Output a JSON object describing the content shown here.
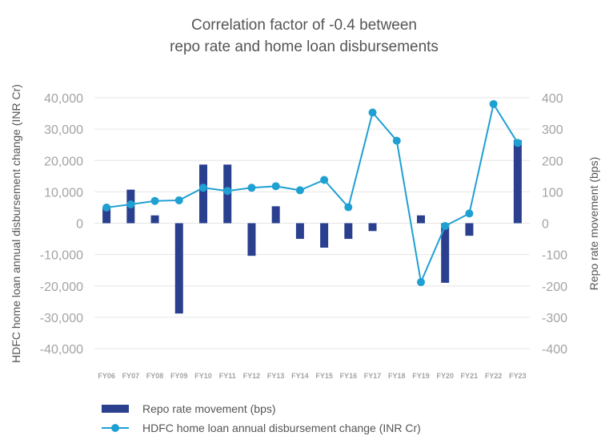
{
  "chart_data": {
    "type": "bar+line",
    "title_lines": [
      "Correlation factor of -0.4 between",
      "repo rate and home loan disbursements"
    ],
    "categories": [
      "FY06",
      "FY07",
      "FY08",
      "FY09",
      "FY10",
      "FY11",
      "FY12",
      "FY13",
      "FY14",
      "FY15",
      "FY16",
      "FY17",
      "FY18",
      "FY19",
      "FY20",
      "FY21",
      "FY22",
      "FY23"
    ],
    "left_axis": {
      "label": "HDFC home loan annual disbursement change (INR Cr)",
      "ylim": [
        -40000,
        40000
      ],
      "ticks": [
        40000,
        30000,
        20000,
        10000,
        0,
        -10000,
        -20000,
        -30000,
        -40000
      ],
      "tick_labels": [
        "40,000",
        "30,000",
        "20,000",
        "10,000",
        "0",
        "-10,000",
        "-20,000",
        "-30,000",
        "-40,000"
      ]
    },
    "right_axis": {
      "label": "Repo rate movement (bps)",
      "ylim": [
        -400,
        400
      ],
      "ticks": [
        400,
        300,
        200,
        100,
        0,
        -100,
        -200,
        -300,
        -400
      ],
      "tick_labels": [
        "400",
        "300",
        "200",
        "100",
        "0",
        "-100",
        "-200",
        "-300",
        "-400"
      ]
    },
    "series": [
      {
        "name": "Repo rate movement (bps)",
        "type": "bar",
        "axis": "right",
        "color": "#2b3f8f",
        "values": [
          50,
          107,
          25,
          -288,
          187,
          187,
          -104,
          54,
          -50,
          -78,
          -50,
          -25,
          0,
          25,
          -190,
          -40,
          0,
          265
        ]
      },
      {
        "name": "HDFC home loan annual disbursement change (INR Cr)",
        "type": "line",
        "axis": "left",
        "color": "#1fa0d2",
        "values": [
          5000,
          6000,
          7100,
          7300,
          11300,
          10300,
          11300,
          11800,
          10500,
          13800,
          5100,
          35300,
          26300,
          -18800,
          -900,
          3100,
          38000,
          25600
        ]
      }
    ],
    "legend": {
      "position": "bottom-left",
      "items": [
        "Repo rate movement (bps)",
        "HDFC home loan annual disbursement change (INR Cr)"
      ]
    },
    "colors": {
      "bar": "#2b3f8f",
      "line": "#1fa0d2",
      "grid": "#e6e6e6",
      "tick": "#a3a3a3",
      "title": "#555555"
    }
  }
}
